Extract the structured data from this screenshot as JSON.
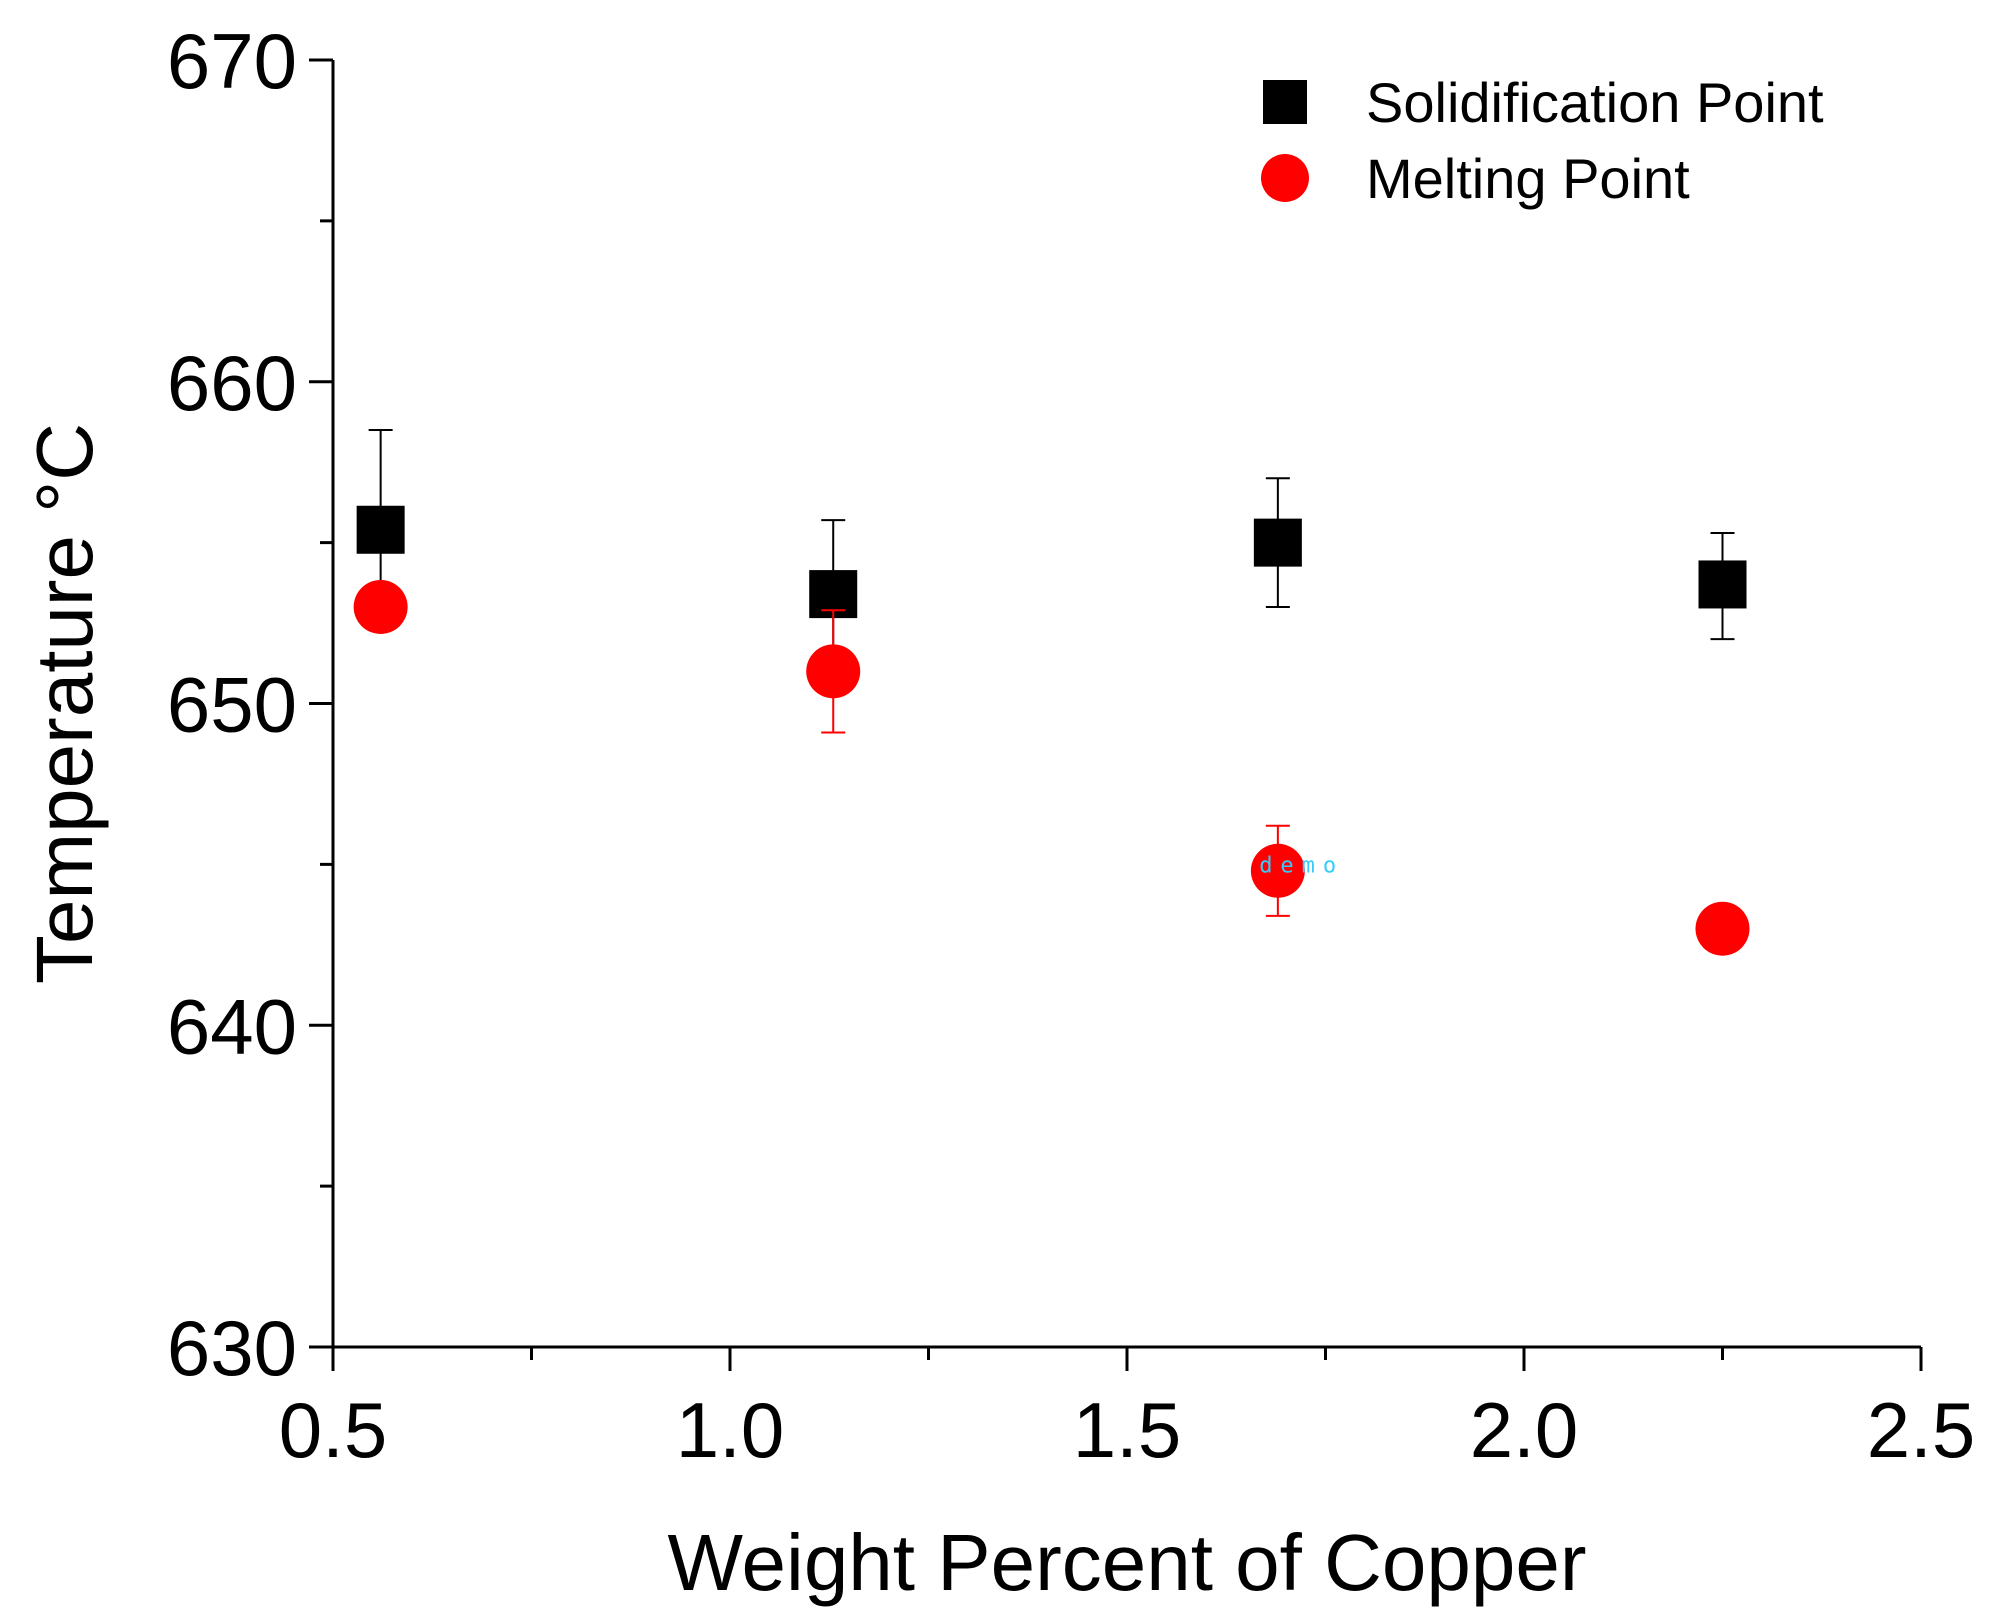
{
  "chart_data": {
    "type": "scatter",
    "title": "",
    "xlabel": "Weight Percent of Copper",
    "ylabel": "Temperature °C",
    "xlim": [
      0.5,
      2.5
    ],
    "ylim": [
      630,
      670
    ],
    "xticks": [
      "0.5",
      "1.0",
      "1.5",
      "2.0",
      "2.5"
    ],
    "xtick_values": [
      0.5,
      1.0,
      1.5,
      2.0,
      2.5
    ],
    "yticks": [
      "630",
      "640",
      "650",
      "660",
      "670"
    ],
    "ytick_values": [
      630,
      640,
      650,
      660,
      670
    ],
    "legend_position": "top-right",
    "grid": false,
    "series": [
      {
        "name": "Solidification Point",
        "marker": "square",
        "color": "#000000",
        "x": [
          0.56,
          1.13,
          1.69,
          2.25
        ],
        "y": [
          655.4,
          653.4,
          655.0,
          653.7
        ],
        "err_plus": [
          3.1,
          2.3,
          2.0,
          1.6
        ],
        "err_minus": [
          3.1,
          2.3,
          2.0,
          1.7
        ]
      },
      {
        "name": "Melting Point",
        "marker": "circle",
        "color": "#ff0000",
        "x": [
          0.56,
          1.13,
          1.69,
          2.25
        ],
        "y": [
          653.0,
          651.0,
          644.8,
          643.0
        ],
        "err_plus": [
          0.6,
          1.9,
          1.4,
          0.0
        ],
        "err_minus": [
          0.6,
          1.9,
          1.4,
          0.0
        ]
      }
    ],
    "annotations": [
      {
        "text": "demo",
        "x": 1.72,
        "y": 645.0,
        "color": "#33ccff"
      }
    ]
  }
}
